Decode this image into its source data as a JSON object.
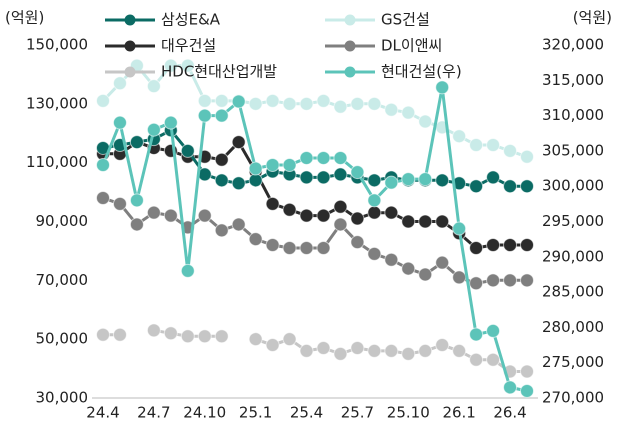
{
  "chart_data": {
    "type": "line",
    "y_unit": "(억원)",
    "y2_unit": "(억원)",
    "categories": [
      "24.4",
      null,
      null,
      "24.7",
      null,
      null,
      "24.10",
      null,
      null,
      "25.1",
      null,
      null,
      "25.4",
      null,
      null,
      "25.7",
      null,
      null,
      "25.10",
      null,
      null,
      "26.1",
      null,
      null,
      "26.4",
      null
    ],
    "ylim": [
      30000,
      150000
    ],
    "yticks": [
      {
        "value": 30000,
        "label": "30,000"
      },
      {
        "value": 50000,
        "label": "50,000"
      },
      {
        "value": 70000,
        "label": "70,000"
      },
      {
        "value": 90000,
        "label": "90,000"
      },
      {
        "value": 110000,
        "label": "110,000"
      },
      {
        "value": 130000,
        "label": "130,000"
      },
      {
        "value": 150000,
        "label": "150,000"
      }
    ],
    "y2lim": [
      270000,
      320000
    ],
    "y2ticks": [
      {
        "value": 270000,
        "label": "270,000"
      },
      {
        "value": 275000,
        "label": "275,000"
      },
      {
        "value": 280000,
        "label": "280,000"
      },
      {
        "value": 285000,
        "label": "285,000"
      },
      {
        "value": 290000,
        "label": "290,000"
      },
      {
        "value": 295000,
        "label": "295,000"
      },
      {
        "value": 300000,
        "label": "300,000"
      },
      {
        "value": 305000,
        "label": "305,000"
      },
      {
        "value": 310000,
        "label": "310,000"
      },
      {
        "value": 315000,
        "label": "315,000"
      },
      {
        "value": 320000,
        "label": "320,000"
      }
    ],
    "series": [
      {
        "name": "GS건설",
        "color": "#c9ebe8",
        "values": [
          131000,
          137000,
          143000,
          136000,
          143000,
          143000,
          131000,
          131000,
          131000,
          130000,
          131000,
          130000,
          130000,
          131000,
          129000,
          130000,
          130000,
          128000,
          127000,
          124000,
          122000,
          119000,
          116000,
          116000,
          114000,
          112000
        ]
      },
      {
        "name": "HDC현대산업개발",
        "color": "#c6c6c6",
        "values": [
          51500,
          51500,
          null,
          53000,
          52000,
          51000,
          51000,
          51000,
          null,
          50000,
          48000,
          50000,
          46000,
          47000,
          45000,
          47000,
          46000,
          46000,
          45000,
          46000,
          48000,
          46000,
          43000,
          43000,
          39000,
          39000
        ]
      },
      {
        "name": "DL이앤씨",
        "color": "#7f7f7f",
        "values": [
          98000,
          96000,
          89000,
          93000,
          92000,
          88000,
          92000,
          87000,
          89000,
          84000,
          82000,
          81000,
          81000,
          81000,
          89000,
          83000,
          79000,
          77000,
          74000,
          72000,
          76000,
          71000,
          69000,
          70000,
          70000,
          70000
        ]
      },
      {
        "name": "대우건설",
        "color": "#2b2b2b",
        "values": [
          113000,
          113000,
          117000,
          115000,
          114000,
          112000,
          112000,
          111000,
          117000,
          107000,
          96000,
          94000,
          92000,
          92000,
          95000,
          91000,
          93000,
          93000,
          90000,
          90000,
          90000,
          86000,
          81000,
          82000,
          82000,
          82000
        ]
      },
      {
        "name": "삼성E&A",
        "color": "#0b6b64",
        "values": [
          115000,
          116000,
          117000,
          118000,
          121000,
          114000,
          106000,
          104000,
          103000,
          104000,
          107000,
          106000,
          105000,
          105000,
          106000,
          105000,
          104000,
          105000,
          104000,
          104000,
          104000,
          103000,
          102000,
          105000,
          102000,
          102000
        ]
      },
      {
        "name": "현대건설(우)",
        "color": "#5cc4b9",
        "axis": "y2",
        "values": [
          303000,
          309000,
          298000,
          308000,
          309000,
          288000,
          310000,
          310000,
          312000,
          302500,
          303000,
          303000,
          304000,
          304000,
          304000,
          302000,
          298000,
          300500,
          301000,
          301000,
          314000,
          294000,
          279000,
          279500,
          271500,
          271000
        ]
      }
    ],
    "legend_order": [
      4,
      0,
      3,
      2,
      1,
      5
    ]
  }
}
